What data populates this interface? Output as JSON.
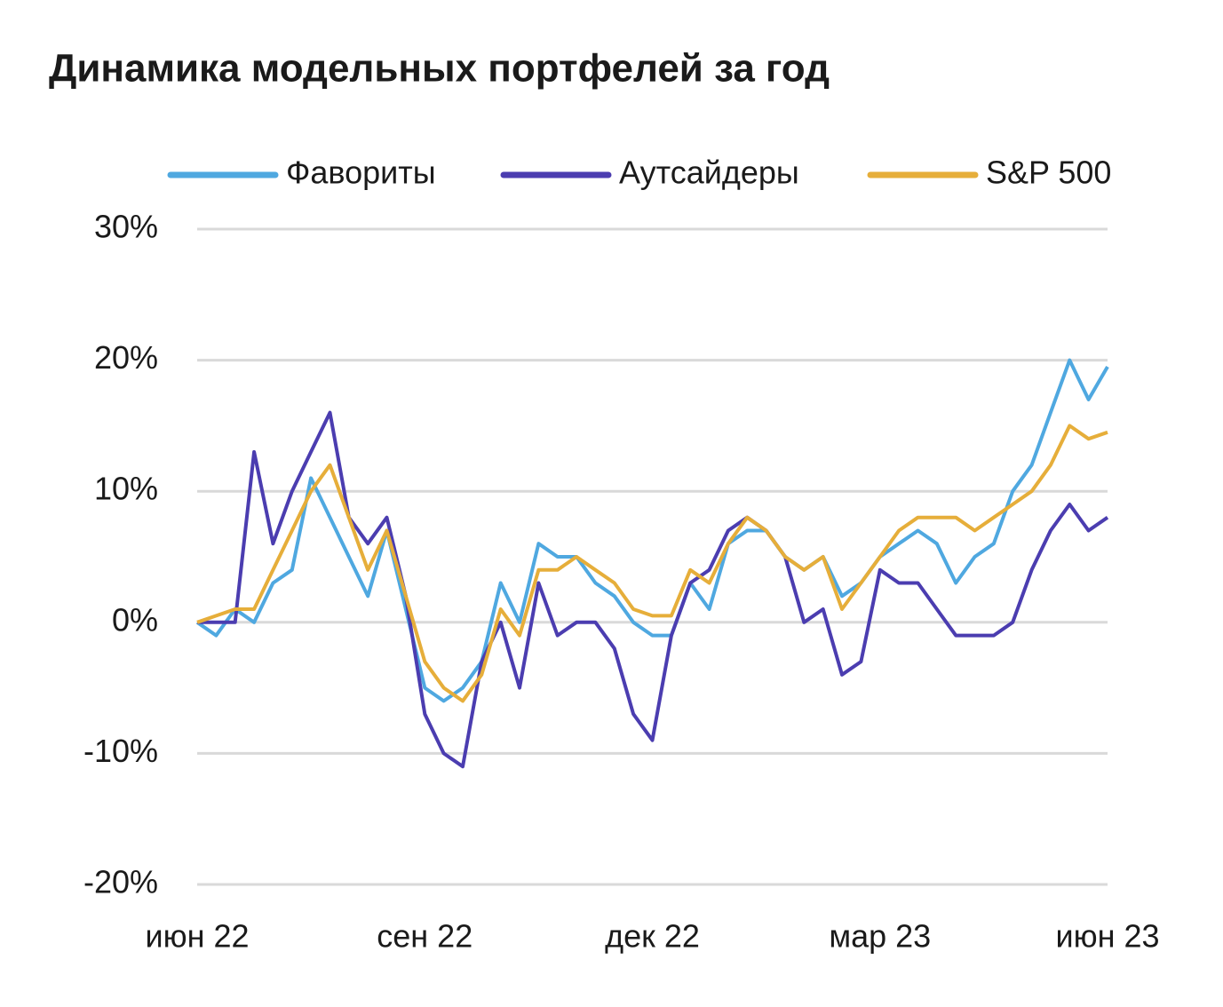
{
  "chart_data": {
    "type": "line",
    "title": "Динамика модельных портфелей за год",
    "categories": [
      "июн 22",
      null,
      null,
      null,
      null,
      null,
      null,
      null,
      null,
      null,
      null,
      null,
      "сен 22",
      null,
      null,
      null,
      null,
      null,
      null,
      null,
      null,
      null,
      null,
      null,
      "дек 22",
      null,
      null,
      null,
      null,
      null,
      null,
      null,
      null,
      null,
      null,
      null,
      "мар 23",
      null,
      null,
      null,
      null,
      null,
      null,
      null,
      null,
      null,
      null,
      null,
      "июн 23"
    ],
    "series": [
      {
        "name": "Фавориты",
        "color": "#4fa8e0",
        "values": [
          0,
          -1,
          1,
          0,
          3,
          4,
          11,
          8,
          5,
          2,
          7,
          1,
          -5,
          -6,
          -5,
          -3,
          3,
          0,
          6,
          5,
          5,
          3,
          2,
          0,
          -1,
          -1,
          3,
          1,
          6,
          7,
          7,
          5,
          4,
          5,
          2,
          3,
          5,
          6,
          7,
          6,
          3,
          5,
          6,
          10,
          12,
          16,
          20,
          17,
          19.5
        ]
      },
      {
        "name": "Аутсайдеры",
        "color": "#4b3db0",
        "values": [
          0,
          0,
          0,
          13,
          6,
          10,
          13,
          16,
          8,
          6,
          8,
          2,
          -7,
          -10,
          -11,
          -3,
          0,
          -5,
          3,
          -1,
          0,
          0,
          -2,
          -7,
          -9,
          -1,
          3,
          4,
          7,
          8,
          7,
          5,
          0,
          1,
          -4,
          -3,
          4,
          3,
          3,
          1,
          -1,
          -1,
          -1,
          0,
          4,
          7,
          9,
          7,
          8
        ]
      },
      {
        "name": "S&P 500",
        "color": "#e6ae3a",
        "values": [
          0,
          0.5,
          1,
          1,
          4,
          7,
          10,
          12,
          8,
          4,
          7,
          2,
          -3,
          -5,
          -6,
          -4,
          1,
          -1,
          4,
          4,
          5,
          4,
          3,
          1,
          0.5,
          0.5,
          4,
          3,
          6,
          8,
          7,
          5,
          4,
          5,
          1,
          3,
          5,
          7,
          8,
          8,
          8,
          7,
          8,
          9,
          10,
          12,
          15,
          14,
          14.5
        ]
      }
    ],
    "ylim": [
      -20,
      30
    ],
    "yticks": [
      {
        "value": -20,
        "label": "-20%"
      },
      {
        "value": -10,
        "label": "-10%"
      },
      {
        "value": 0,
        "label": "0%"
      },
      {
        "value": 10,
        "label": "10%"
      },
      {
        "value": 20,
        "label": "20%"
      },
      {
        "value": 30,
        "label": "30%"
      }
    ],
    "grid": true,
    "legend": "top"
  }
}
